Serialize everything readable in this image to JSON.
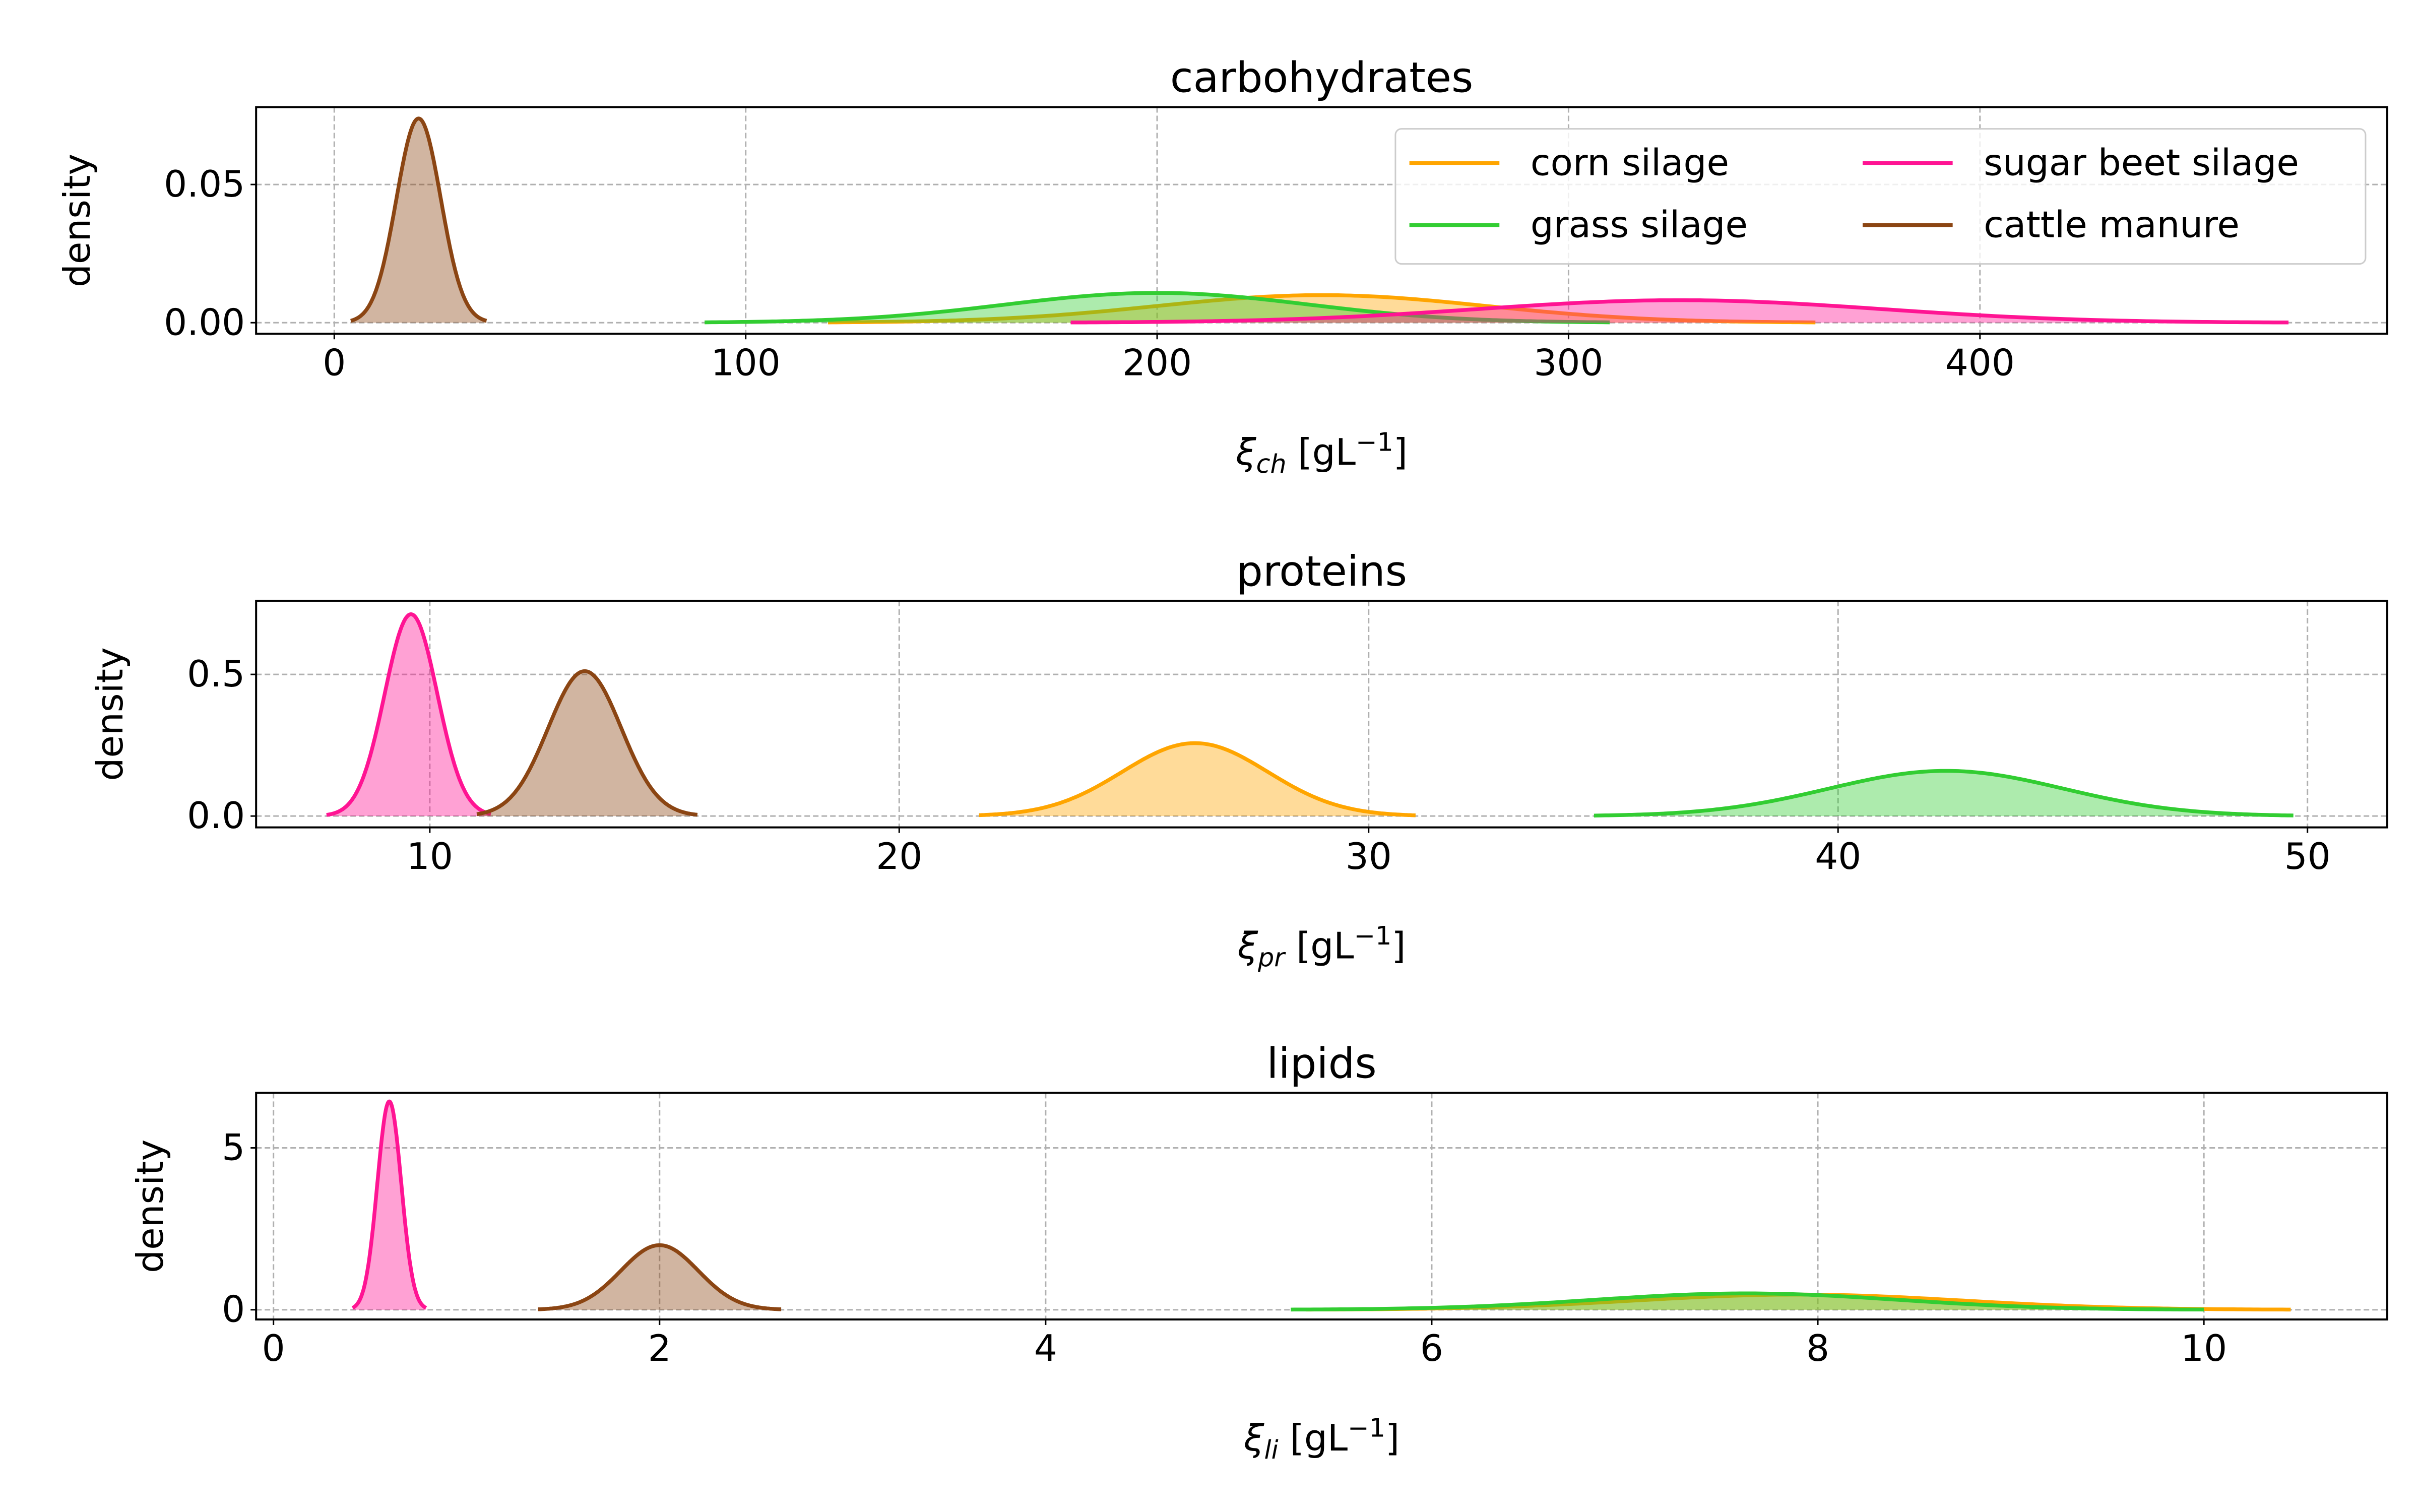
{
  "colors": {
    "corn_silage": "#ffa500",
    "grass_silage": "#32cd32",
    "sugar_beet_silage": "#ff1493",
    "cattle_manure": "#8b4513",
    "grid": "#b0b0b0"
  },
  "chart_data": [
    {
      "type": "area",
      "title": "carbohydrates",
      "ylabel": "density",
      "xlabel": {
        "symbol": "ξ",
        "subscript": "ch",
        "unit_prefix": "[gL",
        "unit_exponent": "−1",
        "unit_suffix": "]"
      },
      "xlim": [
        -19,
        499
      ],
      "ylim": [
        -0.004,
        0.078
      ],
      "xticks": [
        0,
        100,
        200,
        300,
        400
      ],
      "yticks": [
        0.0,
        0.05
      ],
      "ytick_labels": [
        "0.00",
        "0.05"
      ],
      "grid": true,
      "legend": {
        "placement": "top-right",
        "columns": 2
      },
      "series": [
        {
          "name": "corn silage",
          "color_key": "corn_silage",
          "mean": 240,
          "sd": 40,
          "range": [
            120,
            360
          ]
        },
        {
          "name": "grass silage",
          "color_key": "grass_silage",
          "mean": 200,
          "sd": 37,
          "range": [
            90,
            310
          ]
        },
        {
          "name": "sugar beet silage",
          "color_key": "sugar_beet_silage",
          "mean": 327,
          "sd": 49,
          "range": [
            179,
            475
          ]
        },
        {
          "name": "cattle manure",
          "color_key": "cattle_manure",
          "mean": 20.5,
          "sd": 5.4,
          "range": [
            4,
            37
          ]
        }
      ]
    },
    {
      "type": "area",
      "title": "proteins",
      "ylabel": "density",
      "xlabel": {
        "symbol": "ξ",
        "subscript": "pr",
        "unit_prefix": "[gL",
        "unit_exponent": "−1",
        "unit_suffix": "]"
      },
      "xlim": [
        6.3,
        51.7
      ],
      "ylim": [
        -0.04,
        0.76
      ],
      "xticks": [
        10,
        20,
        30,
        40,
        50
      ],
      "yticks": [
        0.0,
        0.5
      ],
      "ytick_labels": [
        "0.0",
        "0.5"
      ],
      "grid": true,
      "series": [
        {
          "name": "corn silage",
          "color_key": "corn_silage",
          "mean": 26.3,
          "sd": 1.55,
          "range": [
            21.7,
            31.0
          ]
        },
        {
          "name": "grass silage",
          "color_key": "grass_silage",
          "mean": 42.3,
          "sd": 2.5,
          "range": [
            34.8,
            49.7
          ]
        },
        {
          "name": "sugar beet silage",
          "color_key": "sugar_beet_silage",
          "mean": 9.6,
          "sd": 0.56,
          "range": [
            7.8,
            11.3
          ]
        },
        {
          "name": "cattle manure",
          "color_key": "cattle_manure",
          "mean": 13.3,
          "sd": 0.78,
          "range": [
            11.0,
            15.7
          ]
        }
      ]
    },
    {
      "type": "area",
      "title": "lipids",
      "ylabel": "density",
      "xlabel": {
        "symbol": "ξ",
        "subscript": "li",
        "unit_prefix": "[gL",
        "unit_exponent": "−1",
        "unit_suffix": "]"
      },
      "xlim": [
        -0.09,
        10.95
      ],
      "ylim": [
        -0.3,
        6.7
      ],
      "xticks": [
        0,
        2,
        4,
        6,
        8,
        10
      ],
      "yticks": [
        0,
        5
      ],
      "ytick_labels": [
        "0",
        "5"
      ],
      "grid": true,
      "series": [
        {
          "name": "corn silage",
          "color_key": "corn_silage",
          "mean": 7.9,
          "sd": 0.85,
          "range": [
            5.35,
            10.45
          ]
        },
        {
          "name": "grass silage",
          "color_key": "grass_silage",
          "mean": 7.63,
          "sd": 0.79,
          "range": [
            5.27,
            10.0
          ]
        },
        {
          "name": "sugar beet silage",
          "color_key": "sugar_beet_silage",
          "mean": 0.6,
          "sd": 0.062,
          "range": [
            0.41,
            0.79
          ]
        },
        {
          "name": "cattle manure",
          "color_key": "cattle_manure",
          "mean": 2.0,
          "sd": 0.2,
          "range": [
            1.37,
            2.63
          ]
        }
      ]
    }
  ]
}
